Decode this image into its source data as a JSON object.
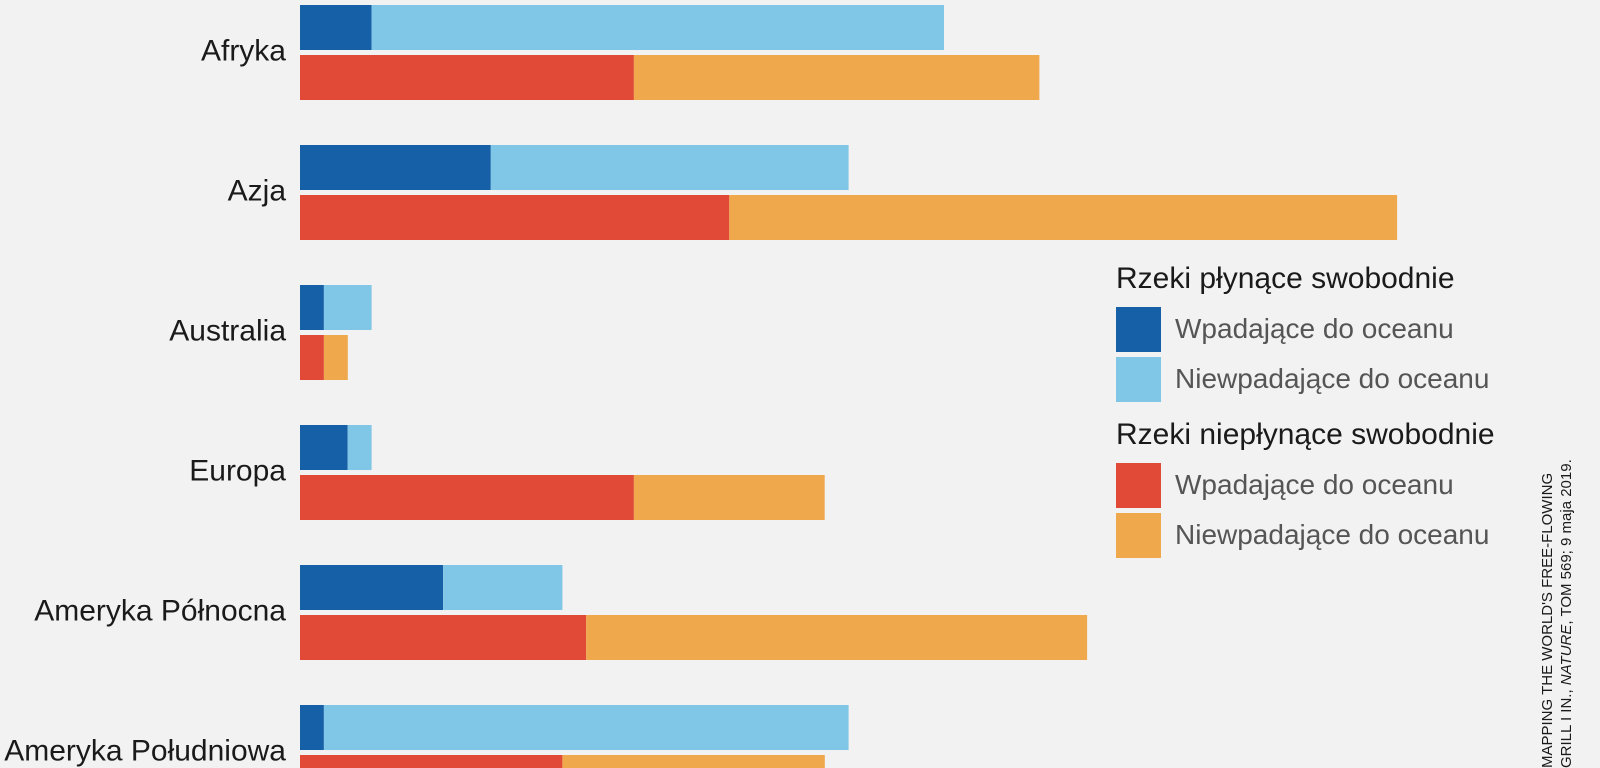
{
  "chart_data": {
    "type": "bar",
    "orientation": "horizontal",
    "stacked": true,
    "categories": [
      "Afryka",
      "Azja",
      "Australia",
      "Europa",
      "Ameryka Północna",
      "Ameryka Południowa"
    ],
    "groups": [
      {
        "title": "Rzeki płynące swobodnie",
        "series": [
          {
            "name": "Wpadające do oceanu",
            "color": "#1660a8",
            "values": [
              3,
              8,
              1,
              2,
              6,
              1
            ]
          },
          {
            "name": "Niewpadające do oceanu",
            "color": "#80c6e6",
            "values": [
              24,
              15,
              2,
              1,
              5,
              22
            ]
          }
        ]
      },
      {
        "title": "Rzeki niepłynące swobodnie",
        "series": [
          {
            "name": "Wpadające do oceanu",
            "color": "#e04a36",
            "values": [
              14,
              18,
              1,
              14,
              12,
              11
            ]
          },
          {
            "name": "Niewpadające do oceanu",
            "color": "#f0a84c",
            "values": [
              17,
              28,
              1,
              8,
              21,
              11
            ]
          }
        ]
      }
    ],
    "xlim": [
      0,
      60
    ],
    "grid": false,
    "legend_position": "right"
  },
  "source": {
    "line1": "MAPPING THE WORLD'S FREE-FLOWING",
    "line2_prefix": "GRILL I IN., ",
    "line2_journal": "NATURE",
    "line2_suffix": ", TOM 569; 9 maja 2019."
  }
}
